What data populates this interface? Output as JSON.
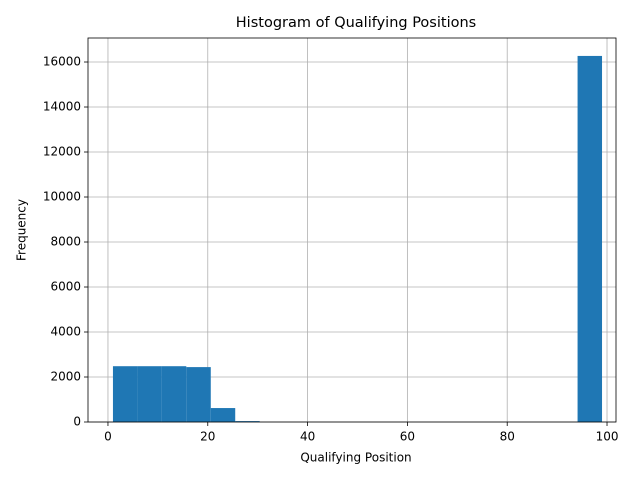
{
  "chart_data": {
    "type": "histogram",
    "title": "Histogram of Qualifying Positions",
    "x_label": "Qualifying Position",
    "y_label": "Frequency",
    "bins": [
      1,
      5.9,
      10.8,
      15.7,
      20.6,
      25.5,
      30.4,
      35.3,
      40.2,
      45.1,
      50,
      54.9,
      59.8,
      64.7,
      69.6,
      74.5,
      79.4,
      84.3,
      89.2,
      94.1,
      99
    ],
    "values": [
      2480,
      2480,
      2480,
      2440,
      620,
      40,
      0,
      0,
      0,
      0,
      0,
      0,
      0,
      0,
      0,
      0,
      0,
      0,
      0,
      16270
    ],
    "color": "#1f77b4",
    "xlim": [
      -4,
      101.8
    ],
    "xticks": [
      0,
      20,
      40,
      60,
      80,
      100
    ],
    "ylim": [
      0,
      17067
    ],
    "yticks": [
      0,
      2000,
      4000,
      6000,
      8000,
      10000,
      12000,
      14000,
      16000
    ],
    "grid": true
  }
}
